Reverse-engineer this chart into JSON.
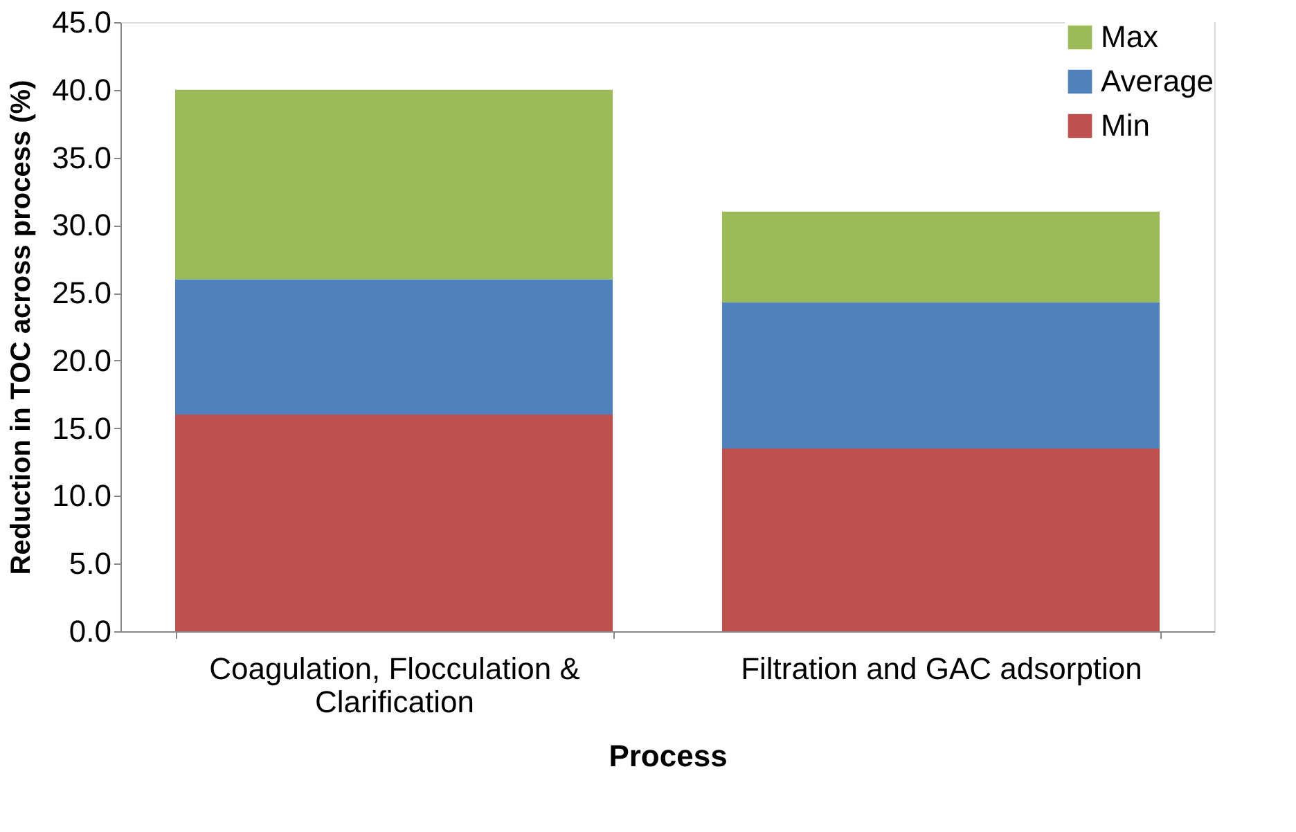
{
  "chart_data": {
    "type": "bar",
    "stacked": true,
    "xlabel": "Process",
    "ylabel": "Reduction in TOC across process (%)",
    "categories": [
      "Coagulation, Flocculation & Clarification",
      "Filtration and GAC adsorption"
    ],
    "series": [
      {
        "name": "Min",
        "color": "#c0504d",
        "values": [
          16.0,
          13.5
        ]
      },
      {
        "name": "Average",
        "color": "#4f81bd",
        "values": [
          10.0,
          10.8
        ]
      },
      {
        "name": "Max",
        "color": "#9bbb59",
        "values": [
          14.0,
          6.7
        ]
      }
    ],
    "ylim": [
      0,
      45
    ],
    "yticks": [
      {
        "value": 0,
        "label": "0.0"
      },
      {
        "value": 5,
        "label": "5.0"
      },
      {
        "value": 10,
        "label": "10.0"
      },
      {
        "value": 15,
        "label": "15.0"
      },
      {
        "value": 20,
        "label": "20.0"
      },
      {
        "value": 25,
        "label": "25.0"
      },
      {
        "value": 30,
        "label": "30.0"
      },
      {
        "value": 35,
        "label": "35.0"
      },
      {
        "value": 40,
        "label": "40.0"
      },
      {
        "value": 45,
        "label": "45.0"
      }
    ],
    "grid": false,
    "legend": "top right"
  }
}
